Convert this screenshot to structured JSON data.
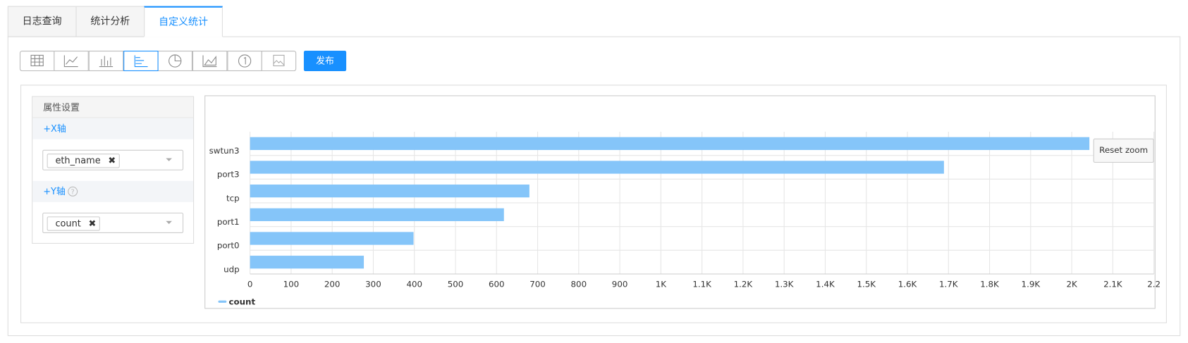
{
  "tabs": [
    "日志查询",
    "统计分析",
    "自定义统计"
  ],
  "publish": "发布",
  "settings": {
    "title": "属性设置",
    "x_axis": "+X轴",
    "x_field": "eth_name",
    "y_axis": "+Y轴",
    "y_field": "count"
  },
  "reset_zoom": "Reset zoom",
  "chart_data": {
    "type": "barh",
    "categories": [
      "swtun3",
      "port3",
      "tcp",
      "port1",
      "port0",
      "udp"
    ],
    "series": [
      {
        "name": "count",
        "color": "#85c5f9",
        "values": [
          2043,
          1689,
          680,
          618,
          398,
          277
        ]
      }
    ],
    "xlim": [
      0,
      2200
    ],
    "xticks": [
      0,
      100,
      200,
      300,
      400,
      500,
      600,
      700,
      800,
      900,
      {
        "value": 1000,
        "label": "1K"
      },
      {
        "value": 1100,
        "label": "1.1K"
      },
      {
        "value": 1200,
        "label": "1.2K"
      },
      {
        "value": 1300,
        "label": "1.3K"
      },
      {
        "value": 1400,
        "label": "1.4K"
      },
      {
        "value": 1500,
        "label": "1.5K"
      },
      {
        "value": 1600,
        "label": "1.6K"
      },
      {
        "value": 1700,
        "label": "1.7K"
      },
      {
        "value": 1800,
        "label": "1.8K"
      },
      {
        "value": 1900,
        "label": "1.9K"
      },
      {
        "value": 2000,
        "label": "2K"
      },
      {
        "value": 2100,
        "label": "2.1K"
      },
      {
        "value": 2200,
        "label": "2.2"
      }
    ],
    "grid": true,
    "legend": "bottom-left"
  }
}
